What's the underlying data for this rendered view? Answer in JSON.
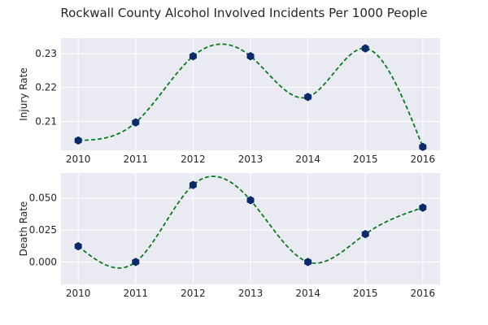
{
  "title": "Rockwall County Alcohol Involved Incidents Per 1000 People",
  "colors": {
    "panel": "#eaeaf2",
    "curve": "#0a7a1e",
    "marker": "#0b2a6b"
  },
  "chart_data": [
    {
      "type": "line",
      "ylabel": "Injury Rate",
      "x": [
        2010,
        2011,
        2012,
        2013,
        2014,
        2015,
        2016
      ],
      "x_ticks": [
        "2010",
        "2011",
        "2012",
        "2013",
        "2014",
        "2015",
        "2016"
      ],
      "values": [
        0.2044,
        0.2097,
        0.2292,
        0.2292,
        0.2172,
        0.2315,
        0.2025
      ],
      "xlim": [
        2009.7,
        2016.3
      ],
      "ylim": [
        0.2015,
        0.2345
      ],
      "y_ticks": [
        "0.21",
        "0.22",
        "0.23"
      ],
      "y_tick_values": [
        0.21,
        0.22,
        0.23
      ],
      "grid": true,
      "line_style": "dashed smooth curve",
      "marker": "hexagon"
    },
    {
      "type": "line",
      "ylabel": "Death Rate",
      "x": [
        2010,
        2011,
        2012,
        2013,
        2014,
        2015,
        2016
      ],
      "x_ticks": [
        "2010",
        "2011",
        "2012",
        "2013",
        "2014",
        "2015",
        "2016"
      ],
      "values": [
        0.0123,
        0.0,
        0.0602,
        0.0483,
        0.0,
        0.0218,
        0.0425
      ],
      "xlim": [
        2009.7,
        2016.3
      ],
      "ylim": [
        -0.0175,
        0.0695
      ],
      "y_ticks": [
        "0.000",
        "0.025",
        "0.050"
      ],
      "y_tick_values": [
        0.0,
        0.025,
        0.05
      ],
      "grid": true,
      "line_style": "dashed smooth curve",
      "marker": "hexagon"
    }
  ]
}
